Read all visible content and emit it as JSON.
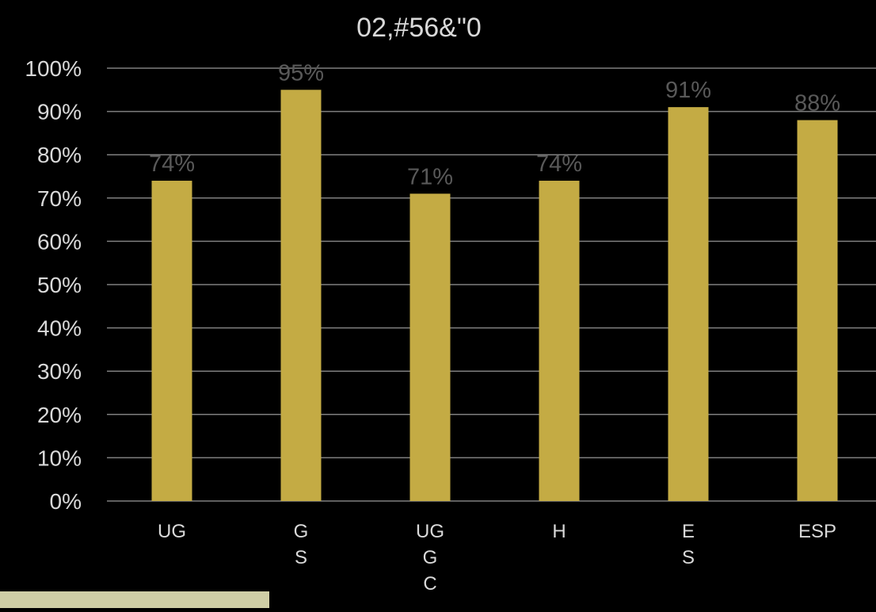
{
  "chart_data": {
    "type": "bar",
    "title": "02,#56&\"0",
    "categories": [
      [
        "UG"
      ],
      [
        "G",
        "S"
      ],
      [
        "UG",
        "G",
        "C"
      ],
      [
        "H"
      ],
      [
        "E",
        "S"
      ],
      [
        "ESP"
      ]
    ],
    "values": [
      74,
      95,
      71,
      74,
      91,
      88
    ],
    "value_labels": [
      "74%",
      "95%",
      "71%",
      "74%",
      "91%",
      "88%"
    ],
    "ylim": [
      0,
      100
    ],
    "yticks": [
      "0%",
      "10%",
      "20%",
      "30%",
      "40%",
      "50%",
      "60%",
      "70%",
      "80%",
      "90%",
      "100%"
    ],
    "xlabel": "",
    "ylabel": "",
    "grid": true,
    "legend": "none",
    "colors": {
      "background": "#000000",
      "bar": "#c4ab44",
      "grid": "#7f7f7f",
      "text": "#d9d9d9",
      "value_label": "#595959",
      "footer": "#cfcea6"
    }
  }
}
